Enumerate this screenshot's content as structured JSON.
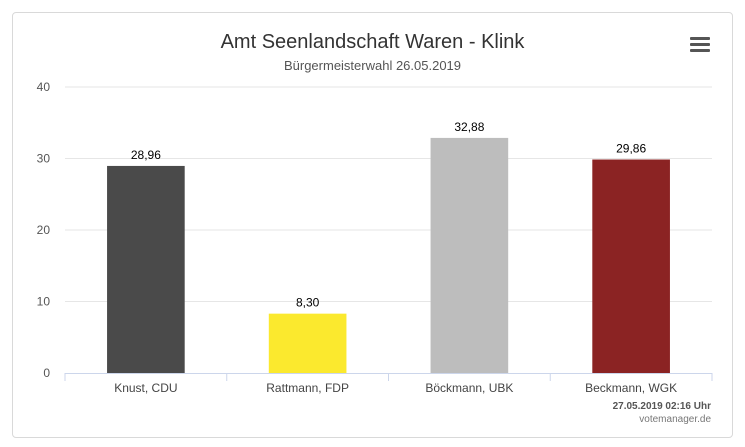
{
  "chart_menu": {
    "icon": "hamburger-menu-icon"
  },
  "credits": {
    "timestamp": "27.05.2019 02:16 Uhr",
    "site": "votemanager.de"
  },
  "chart_data": {
    "type": "bar",
    "title": "Amt Seenlandschaft Waren - Klink",
    "subtitle": "Bürgermeisterwahl 26.05.2019",
    "categories": [
      "Knust, CDU",
      "Rattmann, FDP",
      "Böckmann, UBK",
      "Beckmann, WGK"
    ],
    "values": [
      28.96,
      8.3,
      32.88,
      29.86
    ],
    "data_labels": [
      "28,96",
      "8,30",
      "32,88",
      "29,86"
    ],
    "colors": [
      "#4a4a4a",
      "#fbe92e",
      "#bdbdbd",
      "#8b2323"
    ],
    "yticks": [
      "0",
      "10",
      "20",
      "30",
      "40"
    ],
    "ylim": [
      0,
      40
    ],
    "grid": true,
    "legend": "none"
  }
}
